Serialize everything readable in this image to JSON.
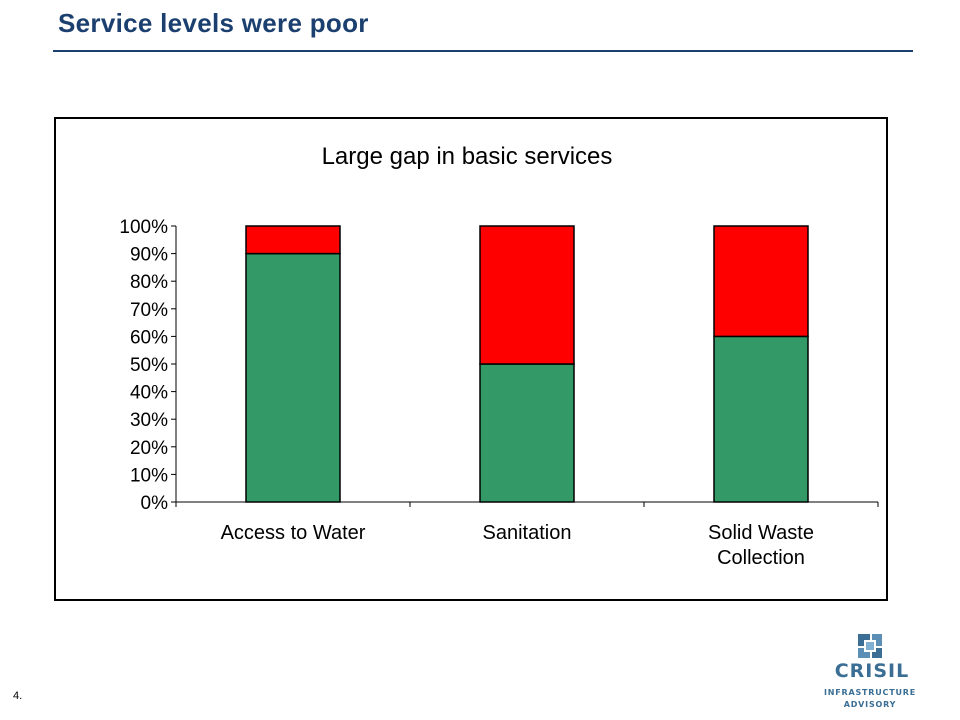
{
  "slide": {
    "title": "Service levels were poor",
    "page_number": "4."
  },
  "logo": {
    "brand": "CRISIL",
    "line1": "INFRASTRUCTURE",
    "line2": "ADVISORY"
  },
  "colors": {
    "title": "#1b3f6e",
    "covered": "#339966",
    "gap": "#ff0000",
    "logo": "#3a6e94"
  },
  "chart_data": {
    "type": "bar",
    "stacked": true,
    "title": "Large gap in basic services",
    "xlabel": "",
    "ylabel": "",
    "ylim": [
      0,
      100
    ],
    "y_ticks": [
      "0%",
      "10%",
      "20%",
      "30%",
      "40%",
      "50%",
      "60%",
      "70%",
      "80%",
      "90%",
      "100%"
    ],
    "categories": [
      [
        "Access to Water"
      ],
      [
        "Sanitation"
      ],
      [
        "Solid Waste",
        "Collection"
      ]
    ],
    "series": [
      {
        "values": [
          90,
          50,
          60
        ]
      },
      {
        "values": [
          10,
          50,
          40
        ]
      }
    ],
    "legend": "none",
    "grid": false
  }
}
